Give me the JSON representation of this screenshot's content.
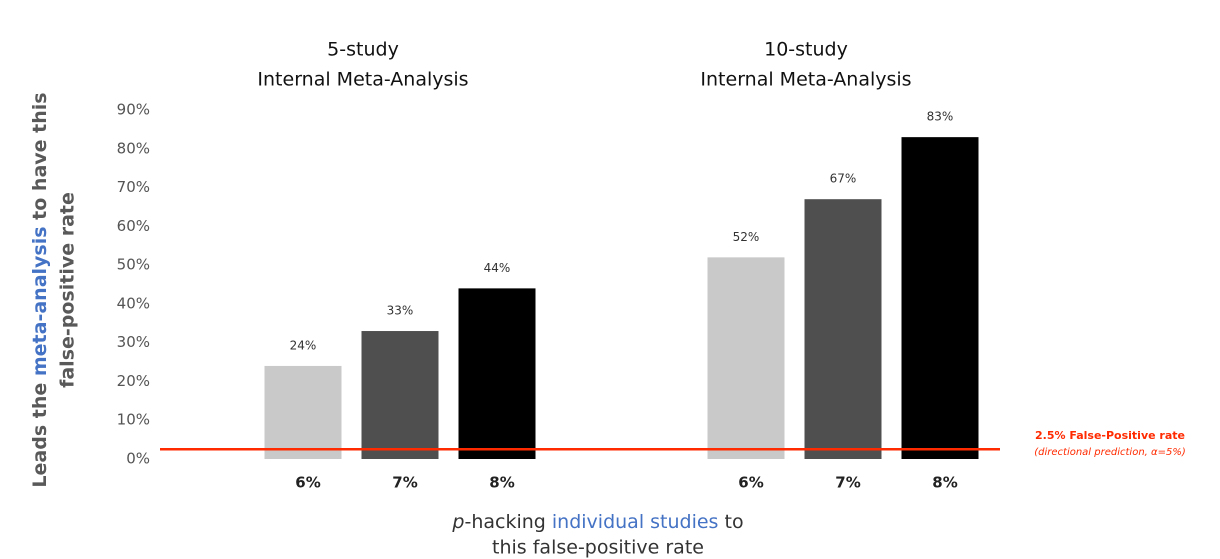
{
  "chart_data": {
    "type": "bar",
    "y_label": [
      [
        "Leads the ",
        "meta-analysis",
        " to have this"
      ],
      [
        "false-positive rate"
      ]
    ],
    "x_label": [
      [
        "p",
        "-hacking ",
        "individual studies",
        " to"
      ],
      [
        "this false-positive rate"
      ]
    ],
    "ylim": [
      0,
      90
    ],
    "yticks": [
      {
        "value": 0,
        "label": "0%"
      },
      {
        "value": 10,
        "label": "10%"
      },
      {
        "value": 20,
        "label": "20%"
      },
      {
        "value": 30,
        "label": "30%"
      },
      {
        "value": 40,
        "label": "40%"
      },
      {
        "value": 50,
        "label": "50%"
      },
      {
        "value": 60,
        "label": "60%"
      },
      {
        "value": 70,
        "label": "70%"
      },
      {
        "value": 80,
        "label": "80%"
      },
      {
        "value": 90,
        "label": "90%"
      }
    ],
    "colors": [
      "#c9c9c9",
      "#4f4f4f",
      "#000000"
    ],
    "groups": [
      {
        "title": [
          "5-study",
          "Internal Meta-Analysis"
        ],
        "categories": [
          "6%",
          "7%",
          "8%"
        ],
        "values": [
          24,
          33,
          44
        ],
        "value_labels": [
          "24%",
          "33%",
          "44%"
        ]
      },
      {
        "title": [
          "10-study",
          "Internal Meta-Analysis"
        ],
        "categories": [
          "6%",
          "7%",
          "8%"
        ],
        "values": [
          52,
          67,
          83
        ],
        "value_labels": [
          "52%",
          "67%",
          "83%"
        ]
      }
    ],
    "reference_line": {
      "value": 2.5,
      "color": "#ff2a00",
      "label": "2.5% False-Positive rate",
      "note": "(directional prediction, α=5%)"
    }
  }
}
